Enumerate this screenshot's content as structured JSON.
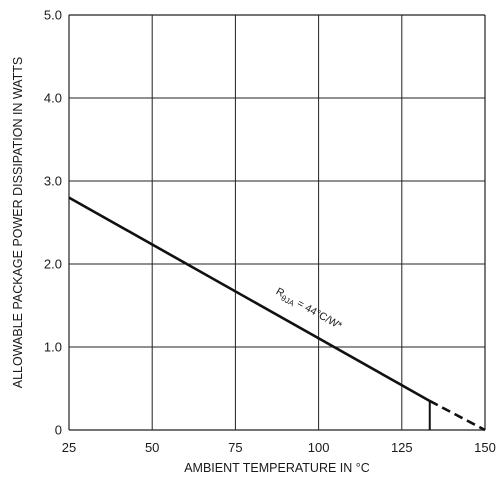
{
  "chart_data": {
    "type": "line",
    "xlabel": "AMBIENT TEMPERATURE IN °C",
    "ylabel": "ALLOWABLE PACKAGE POWER DISSIPATION IN WATTS",
    "xlim": [
      25,
      150
    ],
    "ylim": [
      0,
      5
    ],
    "xticks": [
      25,
      50,
      75,
      100,
      125,
      150
    ],
    "yticks": [
      0,
      1,
      2,
      3,
      4,
      5
    ],
    "xtick_labels": [
      "25",
      "50",
      "75",
      "100",
      "125",
      "150"
    ],
    "ytick_labels": [
      "0",
      "1.0",
      "2.0",
      "3.0",
      "4.0",
      "5.0"
    ],
    "grid": true,
    "series": [
      {
        "style": "solid",
        "x": [
          25,
          133.4
        ],
        "y": [
          2.8,
          0.35
        ]
      },
      {
        "style": "dashed",
        "x": [
          133.4,
          150
        ],
        "y": [
          0.35,
          0
        ]
      }
    ],
    "marker_line": {
      "x": 133.4,
      "y": [
        0,
        0.35
      ]
    },
    "annotation": {
      "main": "R",
      "subscript": "θJA",
      "rest": " = 44°C/W*",
      "x": 105,
      "y": 1.55
    }
  }
}
